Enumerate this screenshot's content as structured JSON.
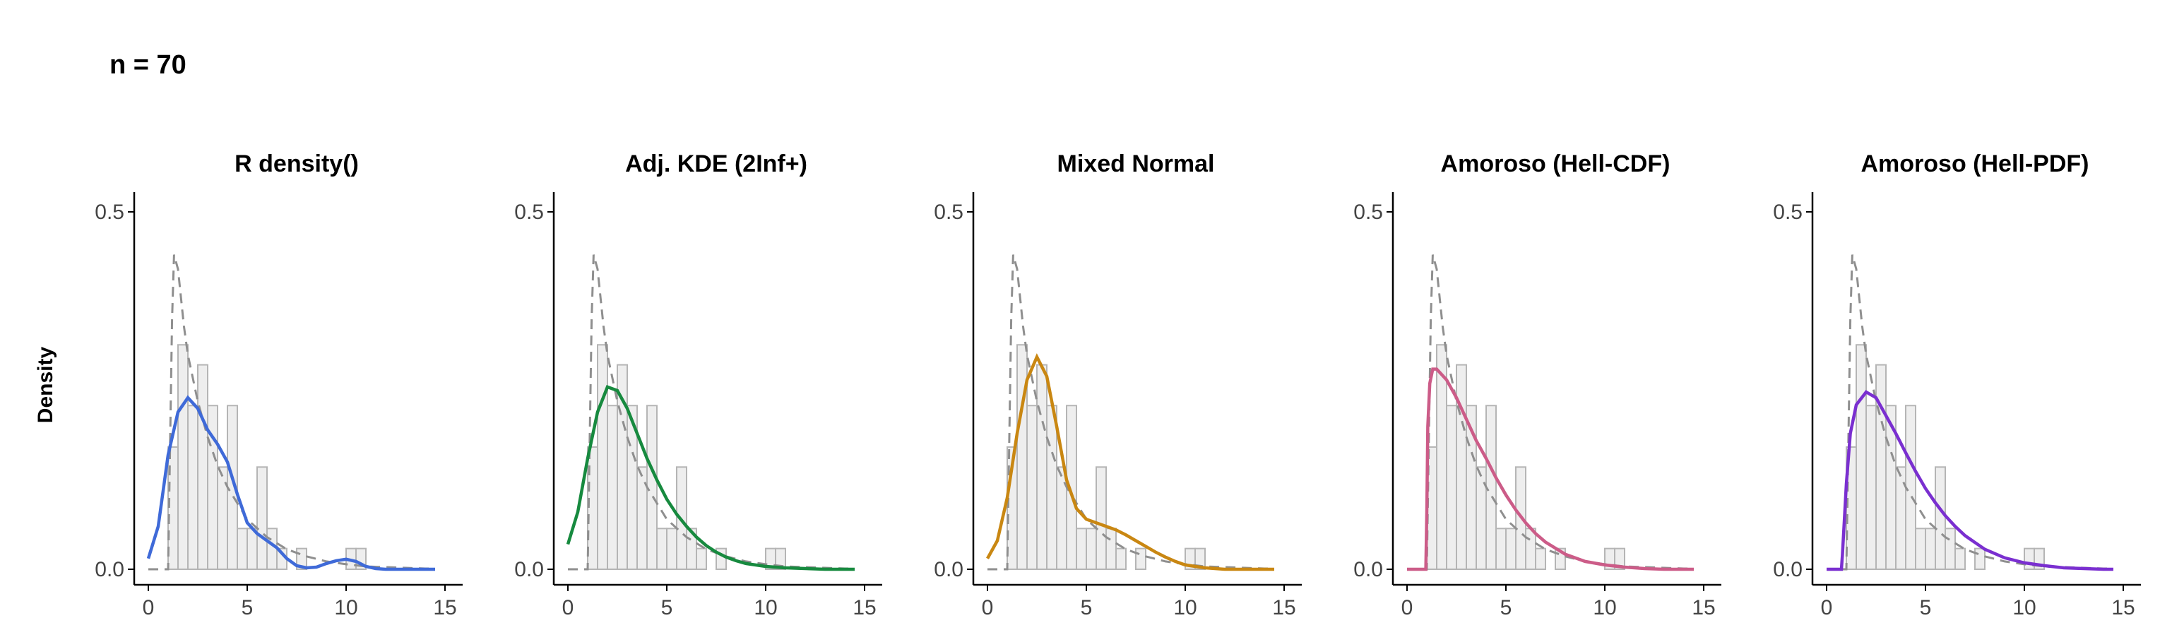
{
  "figure": {
    "title": "n = 70",
    "ylabel": "Density"
  },
  "chart_data": {
    "type": "histogram-density-panels",
    "xlim": [
      0,
      15
    ],
    "ylim": [
      0,
      0.5
    ],
    "x_ticks": [
      0,
      5,
      10,
      15
    ],
    "y_ticks": [
      0.0,
      0.5
    ],
    "y_tick_labels": [
      "0.0",
      "0.5"
    ],
    "histogram": {
      "bin_width": 0.5,
      "bins_start": 0.5,
      "densities": [
        0.0,
        0.171,
        0.314,
        0.229,
        0.286,
        0.229,
        0.143,
        0.229,
        0.057,
        0.057,
        0.143,
        0.057,
        0.029,
        0.0,
        0.029,
        0.0,
        0.0,
        0.0,
        0.0,
        0.029,
        0.029,
        0.0
      ]
    },
    "reference_curve": {
      "style": "dashed",
      "color": "#8f8f8f",
      "x": [
        0,
        1.0,
        1.2,
        1.3,
        1.5,
        1.8,
        2,
        2.5,
        3,
        3.5,
        4,
        5,
        6,
        7,
        8,
        9,
        10,
        11,
        12,
        13,
        14,
        14.5
      ],
      "y": [
        0.0,
        0.0,
        0.35,
        0.44,
        0.42,
        0.34,
        0.3,
        0.235,
        0.185,
        0.145,
        0.115,
        0.07,
        0.045,
        0.028,
        0.018,
        0.011,
        0.007,
        0.004,
        0.003,
        0.002,
        0.001,
        0.001
      ]
    },
    "panels": [
      {
        "title": "R density()",
        "color": "#3f6ad8",
        "x": [
          0,
          0.5,
          1,
          1.5,
          2,
          2.5,
          3,
          3.5,
          4,
          4.5,
          5,
          5.5,
          6,
          6.5,
          7,
          7.5,
          8,
          8.5,
          9,
          9.5,
          10,
          10.5,
          11,
          11.5,
          12,
          13,
          14,
          14.5
        ],
        "y": [
          0.015,
          0.06,
          0.16,
          0.22,
          0.24,
          0.225,
          0.195,
          0.175,
          0.15,
          0.105,
          0.065,
          0.05,
          0.04,
          0.03,
          0.015,
          0.005,
          0.002,
          0.003,
          0.008,
          0.012,
          0.014,
          0.011,
          0.004,
          0.001,
          0.0,
          0.0,
          0.0,
          0.0
        ]
      },
      {
        "title": "Adj. KDE (2Inf+)",
        "color": "#178a3f",
        "x": [
          0,
          0.5,
          1,
          1.5,
          2,
          2.5,
          3,
          3.5,
          4,
          4.5,
          5,
          5.5,
          6,
          6.5,
          7,
          7.5,
          8,
          8.5,
          9,
          10,
          11,
          12,
          13,
          14,
          14.5
        ],
        "y": [
          0.035,
          0.08,
          0.155,
          0.22,
          0.255,
          0.25,
          0.225,
          0.19,
          0.155,
          0.125,
          0.098,
          0.077,
          0.06,
          0.045,
          0.033,
          0.024,
          0.017,
          0.012,
          0.008,
          0.004,
          0.002,
          0.001,
          0.0,
          0.0,
          0.0
        ]
      },
      {
        "title": "Mixed Normal",
        "color": "#c98712",
        "x": [
          0,
          0.5,
          1,
          1.5,
          2,
          2.5,
          3,
          3.5,
          4,
          4.5,
          5,
          5.5,
          6,
          6.5,
          7,
          7.5,
          8,
          8.5,
          9,
          9.5,
          10,
          11,
          12,
          13,
          14,
          14.5
        ],
        "y": [
          0.015,
          0.04,
          0.1,
          0.19,
          0.265,
          0.297,
          0.27,
          0.2,
          0.125,
          0.085,
          0.07,
          0.065,
          0.06,
          0.055,
          0.048,
          0.04,
          0.032,
          0.024,
          0.017,
          0.011,
          0.006,
          0.002,
          0.0,
          0.0,
          0.0,
          0.0
        ]
      },
      {
        "title": "Amoroso (Hell-CDF)",
        "color": "#cc5c88",
        "x": [
          0,
          0.95,
          1.0,
          1.05,
          1.15,
          1.3,
          1.5,
          2,
          2.5,
          3,
          3.5,
          4,
          4.5,
          5,
          5.5,
          6,
          6.5,
          7,
          8,
          9,
          10,
          11,
          12,
          13,
          14,
          14.5
        ],
        "y": [
          0.0,
          0.0,
          0.08,
          0.2,
          0.26,
          0.28,
          0.28,
          0.265,
          0.24,
          0.21,
          0.18,
          0.155,
          0.128,
          0.104,
          0.083,
          0.065,
          0.05,
          0.038,
          0.021,
          0.011,
          0.006,
          0.003,
          0.001,
          0.0,
          0.0,
          0.0
        ]
      },
      {
        "title": "Amoroso (Hell-PDF)",
        "color": "#7a2fd0",
        "x": [
          0,
          0.75,
          0.8,
          0.9,
          1.0,
          1.2,
          1.5,
          2,
          2.5,
          3,
          3.5,
          4,
          4.5,
          5,
          5.5,
          6,
          6.5,
          7,
          8,
          9,
          10,
          11,
          12,
          13,
          14,
          14.5
        ],
        "y": [
          0.0,
          0.0,
          0.02,
          0.07,
          0.12,
          0.19,
          0.23,
          0.248,
          0.24,
          0.215,
          0.19,
          0.163,
          0.137,
          0.113,
          0.093,
          0.075,
          0.06,
          0.047,
          0.028,
          0.016,
          0.009,
          0.005,
          0.002,
          0.001,
          0.0,
          0.0
        ]
      }
    ]
  }
}
